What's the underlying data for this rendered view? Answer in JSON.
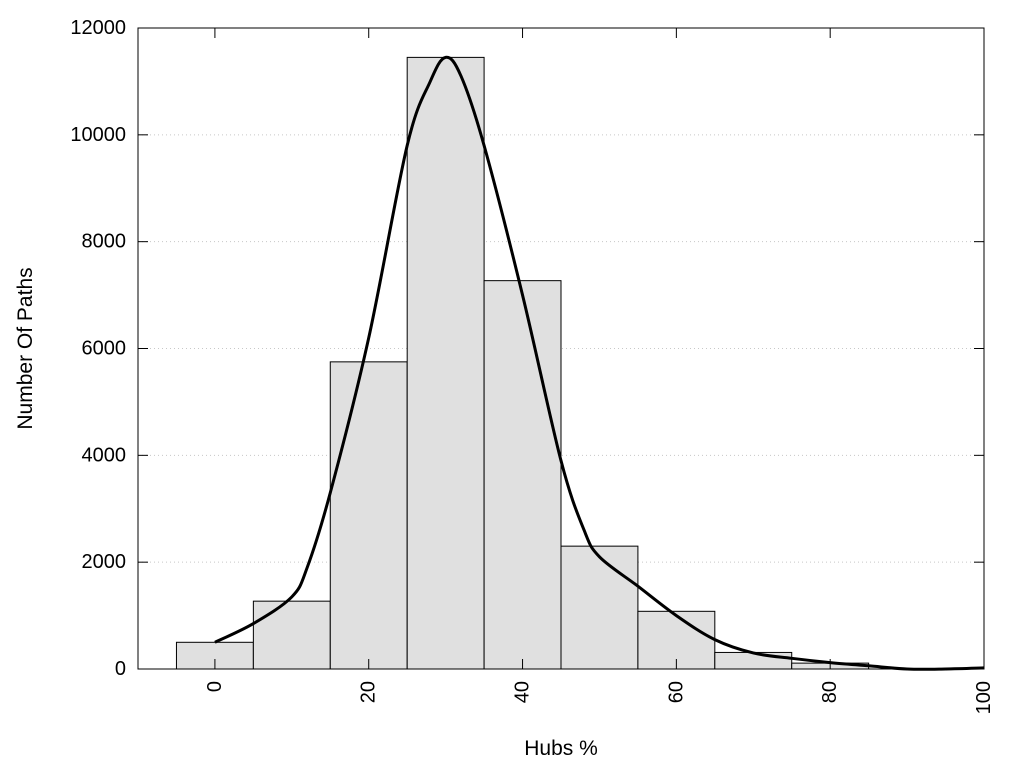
{
  "chart_data": {
    "type": "bar",
    "xlabel": "Hubs %",
    "ylabel": "Number Of Paths",
    "xlim": [
      -10,
      100
    ],
    "ylim": [
      0,
      12000
    ],
    "x_ticks": [
      0,
      20,
      40,
      60,
      80,
      100
    ],
    "x_tick_labels": [
      "0",
      "20",
      "40",
      "60",
      "80",
      "100"
    ],
    "y_ticks": [
      0,
      2000,
      4000,
      6000,
      8000,
      10000,
      12000
    ],
    "y_tick_labels": [
      "0",
      "2000",
      "4000",
      "6000",
      "8000",
      "10000",
      "12000"
    ],
    "grid": "horizontal dotted",
    "bin_width": 10,
    "bins": [
      {
        "center": 0,
        "value": 500
      },
      {
        "center": 10,
        "value": 1270
      },
      {
        "center": 20,
        "value": 5750
      },
      {
        "center": 30,
        "value": 11450
      },
      {
        "center": 40,
        "value": 7270
      },
      {
        "center": 50,
        "value": 2300
      },
      {
        "center": 60,
        "value": 1080
      },
      {
        "center": 70,
        "value": 310
      },
      {
        "center": 80,
        "value": 110
      },
      {
        "center": 90,
        "value": 0
      }
    ],
    "density_curve": {
      "x": [
        0,
        5,
        10,
        12,
        15,
        20,
        25,
        28,
        30,
        32,
        35,
        40,
        45,
        48,
        50,
        55,
        60,
        65,
        70,
        75,
        80,
        85,
        90,
        95,
        100
      ],
      "y": [
        500,
        850,
        1350,
        1900,
        3300,
        6200,
        9800,
        11000,
        11450,
        11100,
        9800,
        7000,
        3900,
        2600,
        2100,
        1550,
        1000,
        550,
        300,
        200,
        120,
        60,
        0,
        0,
        20
      ]
    },
    "colors": {
      "bar_fill": "#e0e0e0",
      "bar_stroke": "#000000",
      "curve": "#000000",
      "grid": "#c8c8c8"
    }
  }
}
